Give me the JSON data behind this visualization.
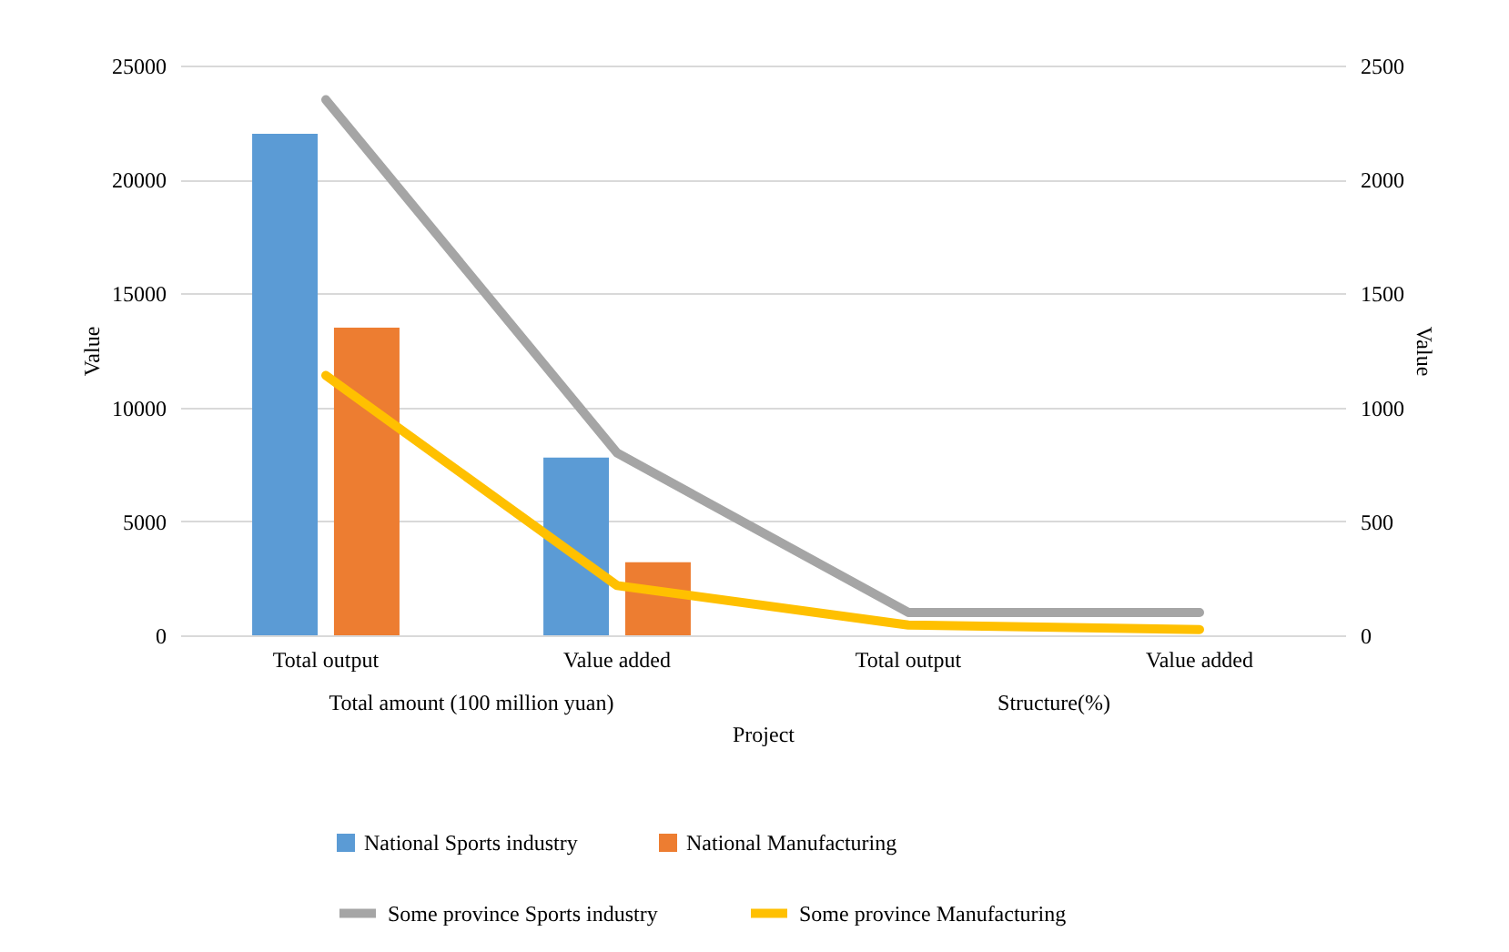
{
  "chart_data": {
    "type": "bar",
    "xlabel": "Project",
    "ylabel": "Value",
    "y2label": "Value",
    "categories": [
      "Total output",
      "Value added",
      "Total output",
      "Value added"
    ],
    "annotations": [
      "Total amount (100 million yuan)",
      "Structure(%)"
    ],
    "series": [
      {
        "name": "National  Sports industry",
        "color": "#5b9bd5",
        "values": [
          22000,
          7800,
          null,
          null
        ]
      },
      {
        "name": "National  Manufacturing",
        "color": "#ed7d31",
        "values": [
          13500,
          3200,
          null,
          null
        ]
      },
      {
        "name": "Some province Sports industry",
        "type": "line",
        "axis": "y2",
        "color": "#a5a5a5",
        "values": [
          2350,
          800,
          100,
          100
        ]
      },
      {
        "name": "Some province Manufacturing",
        "type": "line",
        "axis": "y2",
        "color": "#ffc000",
        "values": [
          1140,
          218,
          45,
          25
        ]
      }
    ],
    "ylim": [
      0,
      25000
    ],
    "yticks": [
      0,
      5000,
      10000,
      15000,
      20000,
      25000
    ],
    "y2lim": [
      0,
      2500
    ],
    "y2ticks": [
      0,
      500,
      1000,
      1500,
      2000,
      2500
    ],
    "grid": "y",
    "legend": "bottom"
  }
}
